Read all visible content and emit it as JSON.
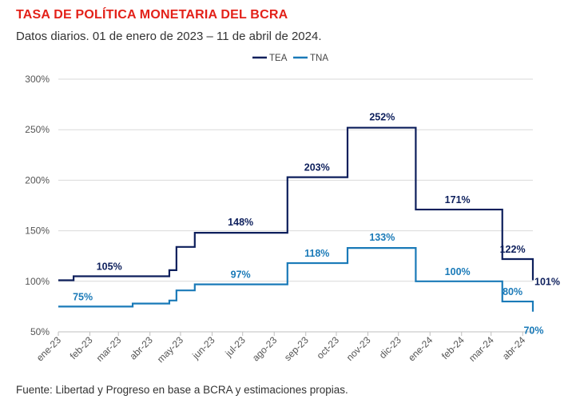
{
  "title": "TASA DE POLÍTICA MONETARIA DEL BCRA",
  "subtitle": "Datos diarios. 01 de enero de 2023 – 11 de abril de 2024.",
  "source": "Fuente: Libertad y Progreso en base a BCRA y estimaciones propias.",
  "chart_data": {
    "type": "line",
    "title": "TASA DE POLÍTICA MONETARIA DEL BCRA",
    "xlabel": "",
    "ylabel": "",
    "x_range": [
      "2023-01-01",
      "2024-04-11"
    ],
    "ylim": [
      50,
      300
    ],
    "y_ticks": [
      50,
      100,
      150,
      200,
      250,
      300
    ],
    "y_tick_labels": [
      "50%",
      "100%",
      "150%",
      "200%",
      "250%",
      "300%"
    ],
    "x_ticks": [
      {
        "date": "2023-01-01",
        "label": "ene-23"
      },
      {
        "date": "2023-02-01",
        "label": "feb-23"
      },
      {
        "date": "2023-03-01",
        "label": "mar-23"
      },
      {
        "date": "2023-04-01",
        "label": "abr-23"
      },
      {
        "date": "2023-05-01",
        "label": "may-23"
      },
      {
        "date": "2023-06-01",
        "label": "jun-23"
      },
      {
        "date": "2023-07-01",
        "label": "jul-23"
      },
      {
        "date": "2023-08-01",
        "label": "ago-23"
      },
      {
        "date": "2023-09-01",
        "label": "sep-23"
      },
      {
        "date": "2023-10-01",
        "label": "oct-23"
      },
      {
        "date": "2023-11-01",
        "label": "nov-23"
      },
      {
        "date": "2023-12-01",
        "label": "dic-23"
      },
      {
        "date": "2024-01-01",
        "label": "ene-24"
      },
      {
        "date": "2024-02-01",
        "label": "feb-24"
      },
      {
        "date": "2024-03-01",
        "label": "mar-24"
      },
      {
        "date": "2024-04-01",
        "label": "abr-24"
      }
    ],
    "grid": "horizontal",
    "legend_position": "top-center",
    "series": [
      {
        "name": "TEA",
        "color": "#0d1f5c",
        "points": [
          [
            "2023-01-01",
            101
          ],
          [
            "2023-01-16",
            105
          ],
          [
            "2023-04-20",
            111
          ],
          [
            "2023-04-27",
            134
          ],
          [
            "2023-05-15",
            148
          ],
          [
            "2023-08-14",
            203
          ],
          [
            "2023-10-12",
            252
          ],
          [
            "2023-12-18",
            171
          ],
          [
            "2024-03-12",
            122
          ],
          [
            "2024-04-11",
            101
          ]
        ],
        "labels": [
          {
            "date": "2023-02-20",
            "value": 105,
            "text": "105%"
          },
          {
            "date": "2023-06-29",
            "value": 148,
            "text": "148%"
          },
          {
            "date": "2023-09-12",
            "value": 203,
            "text": "203%"
          },
          {
            "date": "2023-11-15",
            "value": 252,
            "text": "252%"
          },
          {
            "date": "2024-01-28",
            "value": 171,
            "text": "171%"
          },
          {
            "date": "2024-03-26",
            "value": 122,
            "text": "122%"
          },
          {
            "date": "2024-04-11",
            "value": 101,
            "text": "101%"
          }
        ]
      },
      {
        "name": "TNA",
        "color": "#1a7ab8",
        "points": [
          [
            "2023-01-01",
            75
          ],
          [
            "2023-03-15",
            78
          ],
          [
            "2023-04-20",
            81
          ],
          [
            "2023-04-27",
            91
          ],
          [
            "2023-05-15",
            97
          ],
          [
            "2023-08-14",
            118
          ],
          [
            "2023-10-12",
            133
          ],
          [
            "2023-12-18",
            100
          ],
          [
            "2024-03-12",
            80
          ],
          [
            "2024-04-11",
            70
          ]
        ],
        "labels": [
          {
            "date": "2023-01-25",
            "value": 75,
            "text": "75%"
          },
          {
            "date": "2023-06-29",
            "value": 97,
            "text": "97%"
          },
          {
            "date": "2023-09-12",
            "value": 118,
            "text": "118%"
          },
          {
            "date": "2023-11-15",
            "value": 133,
            "text": "133%"
          },
          {
            "date": "2024-01-28",
            "value": 100,
            "text": "100%"
          },
          {
            "date": "2024-03-26",
            "value": 80,
            "text": "80%"
          },
          {
            "date": "2024-04-11",
            "value": 70,
            "text": "70%"
          }
        ]
      }
    ]
  }
}
